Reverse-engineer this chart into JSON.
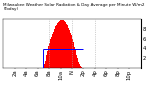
{
  "title": "Milwaukee Weather Solar Radiation & Day Average per Minute W/m2 (Today)",
  "bar_color": "#ff0000",
  "avg_line_color": "#0000ff",
  "background_color": "#ffffff",
  "grid_color": "#aaaaaa",
  "text_color": "#000000",
  "ylim": [
    0,
    1000
  ],
  "xlim": [
    0,
    1440
  ],
  "avg_value": 390,
  "solar_data": [
    0,
    0,
    0,
    0,
    0,
    0,
    0,
    0,
    0,
    0,
    0,
    0,
    0,
    0,
    0,
    0,
    0,
    0,
    0,
    0,
    0,
    0,
    0,
    0,
    0,
    0,
    0,
    0,
    0,
    0,
    0,
    0,
    0,
    0,
    0,
    0,
    0,
    0,
    0,
    0,
    0,
    0,
    0,
    0,
    0,
    0,
    0,
    0,
    0,
    0,
    0,
    0,
    0,
    0,
    0,
    0,
    0,
    0,
    0,
    0,
    0,
    0,
    0,
    0,
    0,
    0,
    0,
    0,
    0,
    0,
    0,
    0,
    0,
    0,
    0,
    0,
    0,
    0,
    0,
    0,
    0,
    0,
    0,
    0,
    0,
    0,
    0,
    0,
    0,
    0,
    0,
    0,
    0,
    0,
    0,
    0,
    0,
    0,
    0,
    0,
    5,
    10,
    20,
    35,
    55,
    80,
    110,
    145,
    185,
    220,
    260,
    300,
    340,
    380,
    420,
    455,
    490,
    520,
    545,
    570,
    595,
    615,
    635,
    655,
    680,
    700,
    720,
    740,
    755,
    770,
    790,
    810,
    830,
    850,
    865,
    875,
    885,
    900,
    915,
    930,
    942,
    950,
    958,
    965,
    970,
    975,
    980,
    984,
    987,
    988,
    990,
    988,
    985,
    980,
    975,
    968,
    958,
    948,
    938,
    928,
    918,
    905,
    892,
    878,
    862,
    845,
    827,
    808,
    787,
    765,
    742,
    718,
    693,
    667,
    640,
    612,
    583,
    553,
    522,
    490,
    457,
    424,
    390,
    357,
    325,
    293,
    262,
    232,
    204,
    177,
    152,
    128,
    107,
    88,
    71,
    56,
    43,
    32,
    23,
    16,
    10,
    5,
    2,
    0,
    0,
    0,
    0,
    0,
    0,
    0,
    0,
    0,
    0,
    0,
    0,
    0,
    0,
    0,
    0,
    0,
    0,
    0,
    0,
    0,
    0,
    0,
    0,
    0,
    0,
    0,
    0,
    0,
    0,
    0,
    0,
    0,
    0,
    0,
    0,
    0,
    0,
    0,
    0,
    0,
    0,
    0,
    0,
    0,
    0,
    0,
    0,
    0,
    0,
    0,
    0,
    0,
    0,
    0,
    0,
    0,
    0,
    0,
    0,
    0,
    0,
    0,
    0,
    0,
    0,
    0,
    0,
    0,
    0,
    0,
    0,
    0,
    0,
    0,
    0,
    0,
    0,
    0,
    0,
    0,
    0,
    0,
    0,
    0,
    0,
    0,
    0,
    0,
    0,
    0,
    0,
    0,
    0,
    0,
    0,
    0,
    0,
    0,
    0,
    0,
    0,
    0,
    0,
    0,
    0,
    0,
    0,
    0,
    0,
    0,
    0,
    0,
    0,
    0,
    0,
    0,
    0,
    0,
    0,
    0,
    0,
    0,
    0,
    0,
    0,
    0,
    0,
    0,
    0,
    0,
    0,
    0,
    0,
    0,
    0,
    0,
    0,
    0,
    0,
    0,
    0,
    0,
    0,
    0,
    0,
    0
  ],
  "ytick_labels": [
    "2",
    "4",
    "6",
    "8"
  ],
  "ytick_values": [
    200,
    400,
    600,
    800
  ],
  "xtick_positions": [
    120,
    240,
    360,
    480,
    600,
    720,
    840,
    960,
    1080,
    1200,
    1320
  ],
  "xtick_labels": [
    "2a",
    "4a",
    "6a",
    "8a",
    "10a",
    "N",
    "2p",
    "4p",
    "6p",
    "8p",
    "10p"
  ],
  "vline_positions": [
    480,
    720,
    960
  ],
  "font_size": 3.8,
  "title_font_size": 3.0
}
